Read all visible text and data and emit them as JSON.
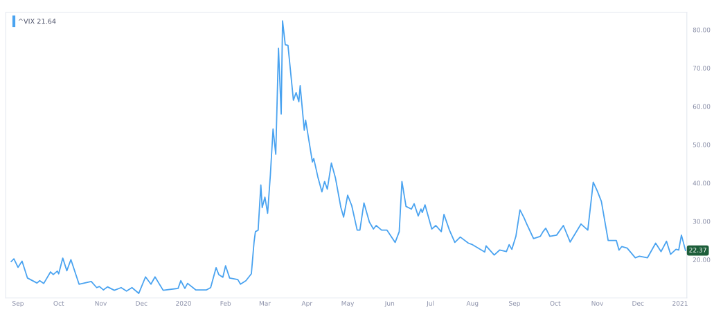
{
  "chart_data": {
    "type": "line",
    "legend": "top left",
    "grid": false,
    "xlim": [
      "2019-08-23",
      "2021-01-06"
    ],
    "ylim": [
      10,
      84.5
    ],
    "xticks": [
      {
        "value": "2019-09-01",
        "label": "Sep"
      },
      {
        "value": "2019-10-01",
        "label": "Oct"
      },
      {
        "value": "2019-11-01",
        "label": "Nov"
      },
      {
        "value": "2019-12-01",
        "label": "Dec"
      },
      {
        "value": "2020-01-01",
        "label": "2020"
      },
      {
        "value": "2020-02-01",
        "label": "Feb"
      },
      {
        "value": "2020-03-01",
        "label": "Mar"
      },
      {
        "value": "2020-04-01",
        "label": "Apr"
      },
      {
        "value": "2020-05-01",
        "label": "May"
      },
      {
        "value": "2020-06-01",
        "label": "Jun"
      },
      {
        "value": "2020-07-01",
        "label": "Jul"
      },
      {
        "value": "2020-08-01",
        "label": "Aug"
      },
      {
        "value": "2020-09-01",
        "label": "Sep"
      },
      {
        "value": "2020-10-01",
        "label": "Oct"
      },
      {
        "value": "2020-11-01",
        "label": "Nov"
      },
      {
        "value": "2020-12-01",
        "label": "Dec"
      },
      {
        "value": "2021-01-01",
        "label": "2021"
      }
    ],
    "yticks": [
      {
        "value": 20,
        "label": "20.00"
      },
      {
        "value": 30,
        "label": "30.00"
      },
      {
        "value": 40,
        "label": "40.00"
      },
      {
        "value": 50,
        "label": "50.00"
      },
      {
        "value": 60,
        "label": "60.00"
      },
      {
        "value": 70,
        "label": "70.00"
      },
      {
        "value": 80,
        "label": "80.00"
      }
    ],
    "annotations": [
      {
        "text": "22.37",
        "x": "2021-01-05",
        "y": 22.37
      }
    ],
    "series": [
      {
        "name": "^VIX 21.64",
        "color": "#4aa3f0",
        "x": [
          "2019-08-27",
          "2019-08-29",
          "2019-09-01",
          "2019-09-04",
          "2019-09-08",
          "2019-09-15",
          "2019-09-17",
          "2019-09-20",
          "2019-09-25",
          "2019-09-27",
          "2019-09-30",
          "2019-10-01",
          "2019-10-04",
          "2019-10-07",
          "2019-10-10",
          "2019-10-16",
          "2019-10-25",
          "2019-10-29",
          "2019-10-31",
          "2019-11-03",
          "2019-11-06",
          "2019-11-11",
          "2019-11-16",
          "2019-11-20",
          "2019-11-24",
          "2019-11-29",
          "2019-12-04",
          "2019-12-08",
          "2019-12-11",
          "2019-12-17",
          "2019-12-28",
          "2019-12-30",
          "2020-01-02",
          "2020-01-04",
          "2020-01-10",
          "2020-01-18",
          "2020-01-21",
          "2020-01-25",
          "2020-01-27",
          "2020-01-30",
          "2020-02-01",
          "2020-02-04",
          "2020-02-10",
          "2020-02-12",
          "2020-02-16",
          "2020-02-20",
          "2020-02-22",
          "2020-02-23",
          "2020-02-25",
          "2020-02-27",
          "2020-02-28",
          "2020-03-01",
          "2020-03-03",
          "2020-03-05",
          "2020-03-07",
          "2020-03-09",
          "2020-03-11",
          "2020-03-13",
          "2020-03-14",
          "2020-03-16",
          "2020-03-18",
          "2020-03-22",
          "2020-03-24",
          "2020-03-26",
          "2020-03-27",
          "2020-03-30",
          "2020-03-31",
          "2020-04-05",
          "2020-04-06",
          "2020-04-09",
          "2020-04-12",
          "2020-04-14",
          "2020-04-16",
          "2020-04-19",
          "2020-04-22",
          "2020-04-26",
          "2020-04-28",
          "2020-05-01",
          "2020-05-04",
          "2020-05-08",
          "2020-05-10",
          "2020-05-13",
          "2020-05-17",
          "2020-05-20",
          "2020-05-22",
          "2020-05-26",
          "2020-05-30",
          "2020-06-05",
          "2020-06-08",
          "2020-06-10",
          "2020-06-13",
          "2020-06-17",
          "2020-06-19",
          "2020-06-22",
          "2020-06-24",
          "2020-06-25",
          "2020-06-27",
          "2020-07-02",
          "2020-07-05",
          "2020-07-09",
          "2020-07-11",
          "2020-07-15",
          "2020-07-19",
          "2020-07-23",
          "2020-07-29",
          "2020-08-01",
          "2020-08-10",
          "2020-08-11",
          "2020-08-17",
          "2020-08-21",
          "2020-08-26",
          "2020-08-28",
          "2020-08-30",
          "2020-09-02",
          "2020-09-05",
          "2020-09-08",
          "2020-09-10",
          "2020-09-15",
          "2020-09-20",
          "2020-09-22",
          "2020-09-24",
          "2020-09-27",
          "2020-10-02",
          "2020-10-07",
          "2020-10-12",
          "2020-10-20",
          "2020-10-25",
          "2020-10-29",
          "2020-11-01",
          "2020-11-04",
          "2020-11-09",
          "2020-11-15",
          "2020-11-17",
          "2020-11-19",
          "2020-11-23",
          "2020-11-29",
          "2020-12-02",
          "2020-12-08",
          "2020-12-14",
          "2020-12-18",
          "2020-12-22",
          "2020-12-25",
          "2020-12-29",
          "2020-12-31",
          "2021-01-02",
          "2021-01-05"
        ],
        "values": [
          19.5,
          20.2,
          18.0,
          19.6,
          15.2,
          13.9,
          14.5,
          13.8,
          16.8,
          16.1,
          17.0,
          16.3,
          20.4,
          17.1,
          20.0,
          13.6,
          14.3,
          12.7,
          13.0,
          12.1,
          12.9,
          12.0,
          12.7,
          11.8,
          12.7,
          11.2,
          15.5,
          13.6,
          15.5,
          12.0,
          12.5,
          14.5,
          12.5,
          13.8,
          12.1,
          12.1,
          12.7,
          17.9,
          16.1,
          15.4,
          18.4,
          15.2,
          14.8,
          13.6,
          14.5,
          16.3,
          24.6,
          27.3,
          27.7,
          39.5,
          33.6,
          36.3,
          32.1,
          42.0,
          54.1,
          47.5,
          75.2,
          58.0,
          82.3,
          76.1,
          75.9,
          61.6,
          63.6,
          61.2,
          65.4,
          53.8,
          56.4,
          45.5,
          46.4,
          41.6,
          37.7,
          40.4,
          38.4,
          45.2,
          41.3,
          33.6,
          31.1,
          36.8,
          34.1,
          27.7,
          27.7,
          34.8,
          29.8,
          28.0,
          28.9,
          27.7,
          27.7,
          24.5,
          27.3,
          40.4,
          33.9,
          33.2,
          34.6,
          31.4,
          33.2,
          32.3,
          34.3,
          28.0,
          28.9,
          27.3,
          31.8,
          27.7,
          24.5,
          25.9,
          24.3,
          23.9,
          22.0,
          23.6,
          21.2,
          22.5,
          22.1,
          23.9,
          22.7,
          26.1,
          33.0,
          30.9,
          29.3,
          25.5,
          26.1,
          27.3,
          28.2,
          26.1,
          26.4,
          28.9,
          24.6,
          29.3,
          27.7,
          40.2,
          37.9,
          35.2,
          25.0,
          25.0,
          22.5,
          23.4,
          23.0,
          20.5,
          20.9,
          20.5,
          24.3,
          22.1,
          24.8,
          21.4,
          22.7,
          22.5,
          26.4,
          22.4
        ]
      }
    ]
  }
}
